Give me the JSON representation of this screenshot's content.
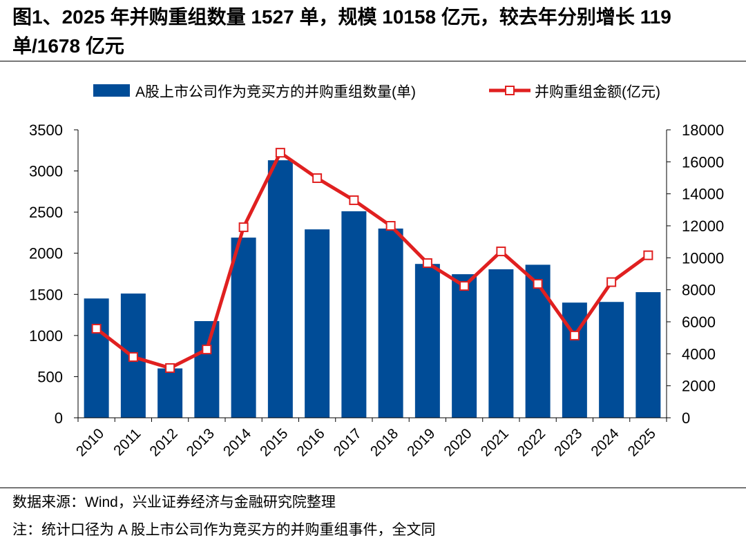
{
  "title": "图1、2025 年并购重组数量 1527 单，规模 10158 亿元，较去年分别增长 119 单/1678 亿元",
  "chart_data": {
    "type": "bar+line",
    "categories": [
      "2010",
      "2011",
      "2012",
      "2013",
      "2014",
      "2015",
      "2016",
      "2017",
      "2018",
      "2019",
      "2020",
      "2021",
      "2022",
      "2023",
      "2024",
      "2025"
    ],
    "series": [
      {
        "name": "A股上市公司作为竞买方的并购重组数量(单)",
        "type": "bar",
        "axis": "left",
        "color": "#004C97",
        "values": [
          1450,
          1510,
          600,
          1175,
          2190,
          3130,
          2290,
          2510,
          2300,
          1870,
          1745,
          1805,
          1860,
          1400,
          1408,
          1527
        ]
      },
      {
        "name": "并购重组金额(亿元)",
        "type": "line",
        "axis": "right",
        "color": "#E02020",
        "values": [
          5570,
          3800,
          3110,
          4270,
          11910,
          16570,
          14980,
          13600,
          12000,
          9670,
          8240,
          10400,
          8370,
          5140,
          8480,
          10158
        ]
      }
    ],
    "left_axis": {
      "ylim": [
        0,
        3500
      ],
      "ticks": [
        "0",
        "500",
        "1000",
        "1500",
        "2000",
        "2500",
        "3000",
        "3500"
      ]
    },
    "right_axis": {
      "ylim": [
        0,
        18000
      ],
      "ticks": [
        "0",
        "2000",
        "4000",
        "6000",
        "8000",
        "10000",
        "12000",
        "14000",
        "16000",
        "18000"
      ]
    },
    "legend": "top",
    "grid": false
  },
  "source": "数据来源：Wind，兴业证券经济与金融研究院整理",
  "note": "注：统计口径为 A 股上市公司作为竞买方的并购重组事件，全文同"
}
